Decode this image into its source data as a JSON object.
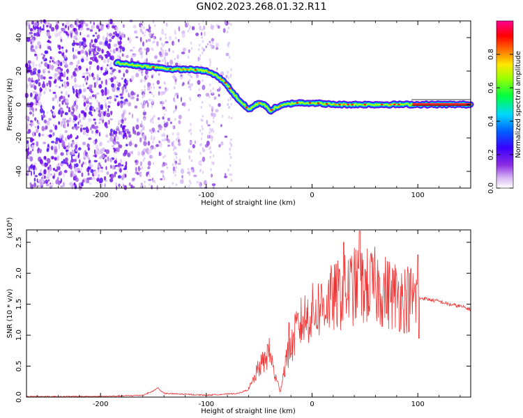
{
  "title": "GN02.2023.268.01.32.R11",
  "chart_data": [
    {
      "type": "heatmap",
      "xlabel": "Height of straight line (km)",
      "ylabel": "Frequency (Hz)",
      "xlim": [
        -270,
        150
      ],
      "ylim": [
        -50,
        50
      ],
      "xticks": [
        -200,
        -100,
        0,
        100
      ],
      "yticks": [
        -40,
        -20,
        0,
        20,
        40
      ],
      "colorbar": {
        "label": "Normalized spectral amplitude",
        "range": [
          0.0,
          1.0
        ],
        "ticks": [
          "0.0",
          "0.2",
          "0.4",
          "0.6",
          "0.8"
        ],
        "colormap": "rainbow (purple-blue-cyan-green-yellow-red-magenta)"
      },
      "ridge": {
        "x": [
          -185,
          -175,
          -160,
          -145,
          -130,
          -115,
          -100,
          -90,
          -82,
          -75,
          -68,
          -60,
          -50,
          -45,
          -40,
          -35,
          -25,
          -15,
          -5,
          0,
          20,
          50,
          80,
          95,
          150
        ],
        "y": [
          25,
          24,
          23,
          22,
          21,
          21,
          20,
          17,
          13,
          7,
          2,
          -3,
          1,
          0,
          -4,
          -2,
          0,
          1,
          1,
          1,
          0,
          0,
          0,
          0,
          0
        ]
      },
      "noise_region_x": [
        -270,
        -80
      ]
    },
    {
      "type": "line",
      "xlabel": "Height of straight line (km)",
      "ylabel": "SNR (10 * v/v)",
      "exponent_label": "(x10⁴)",
      "xlim": [
        -270,
        150
      ],
      "ylim": [
        0,
        2.7
      ],
      "xticks": [
        -200,
        -100,
        0,
        100
      ],
      "yticks": [
        "0.0",
        "0.5",
        "1.0",
        "1.5",
        "2.0",
        "2.5"
      ],
      "color": "#ee3333",
      "envelope": {
        "x": [
          -270,
          -200,
          -160,
          -150,
          -146,
          -140,
          -100,
          -70,
          -60,
          -55,
          -50,
          -45,
          -40,
          -35,
          -30,
          -25,
          -20,
          -15,
          -10,
          -5,
          0,
          10,
          20,
          30,
          40,
          50,
          60,
          70,
          80,
          90,
          98,
          100,
          105,
          110,
          120,
          130,
          140,
          150
        ],
        "y": [
          0.01,
          0.01,
          0.03,
          0.1,
          0.15,
          0.06,
          0.03,
          0.06,
          0.12,
          0.3,
          0.5,
          0.6,
          0.75,
          0.35,
          0.1,
          0.6,
          0.8,
          1.1,
          1.25,
          1.35,
          1.4,
          1.55,
          1.65,
          1.75,
          1.85,
          1.85,
          1.85,
          1.75,
          1.7,
          1.65,
          1.65,
          1.6,
          1.6,
          1.58,
          1.55,
          1.5,
          1.47,
          1.42
        ]
      },
      "spikes": [
        {
          "x": 30,
          "y": 2.5
        },
        {
          "x": 45,
          "y": 2.68
        },
        {
          "x": 100,
          "y": 2.3
        },
        {
          "x": 101,
          "y": 0.95
        },
        {
          "x": -42,
          "y": 0.85
        },
        {
          "x": -22,
          "y": 1.2
        }
      ]
    }
  ]
}
